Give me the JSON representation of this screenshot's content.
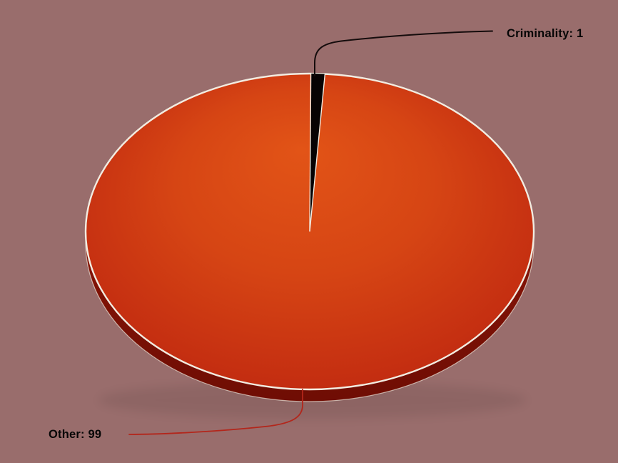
{
  "chart_data": {
    "type": "pie",
    "style": "3d",
    "title": "",
    "legend_position": "none",
    "labels_outside_with_leader_lines": true,
    "total": 100,
    "start_angle_deg": 0.3,
    "slices": [
      {
        "label": "Criminality",
        "value": 1,
        "color": "#070303",
        "callout": "Criminality: 1",
        "leader_color": "#150c0c"
      },
      {
        "label": "Other",
        "value": 99,
        "color": "#cc3a12",
        "callout": "Other: 99",
        "leader_color": "#b3261b"
      }
    ]
  },
  "colors": {
    "background": "#996d6c",
    "pie_top_bright": "#e25417",
    "pie_top_mid": "#d64514",
    "pie_top_dark": "#c52f11",
    "pie_top_edge": "#ae2010",
    "pie_side_top": "#9c1c0a",
    "pie_side_bottom": "#6f0d04",
    "outline": "#f2ece1",
    "label_text": "#060606"
  }
}
